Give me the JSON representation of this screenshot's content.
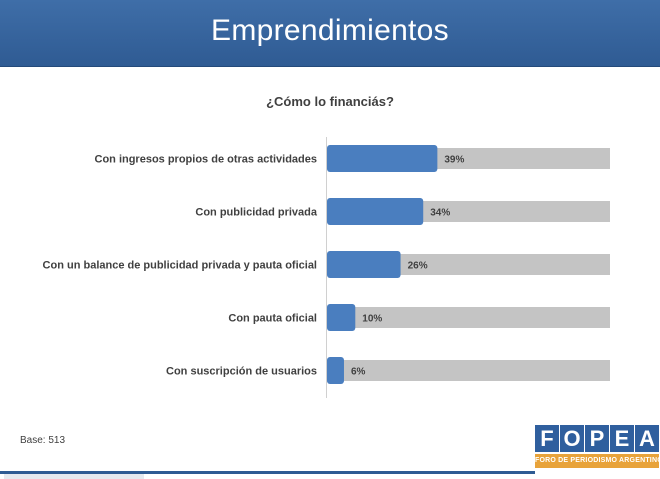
{
  "slide": {
    "header_title": "Emprendimientos",
    "base_note": "Base: 513"
  },
  "logo": {
    "letters": [
      "F",
      "O",
      "P",
      "E",
      "A"
    ],
    "tagline": "FORO DE PERIODISMO ARGENTINO"
  },
  "colors": {
    "header": "#2f5b93",
    "bar": "#4a7ebf",
    "track": "#c4c4c4",
    "logo_blue": "#2f5f9e",
    "logo_orange": "#e8a33a"
  },
  "chart_data": {
    "type": "bar",
    "orientation": "horizontal",
    "title": "¿Cómo lo financiás?",
    "categories": [
      "Con ingresos propios de otras actividades",
      "Con publicidad privada",
      "Con un balance de publicidad privada y pauta oficial",
      "Con pauta oficial",
      "Con suscripción de usuarios"
    ],
    "values": [
      39,
      34,
      26,
      10,
      6
    ],
    "value_labels": [
      "39%",
      "34%",
      "26%",
      "10%",
      "6%"
    ],
    "xlim": [
      0,
      100
    ],
    "grid": false,
    "legend": "none"
  }
}
